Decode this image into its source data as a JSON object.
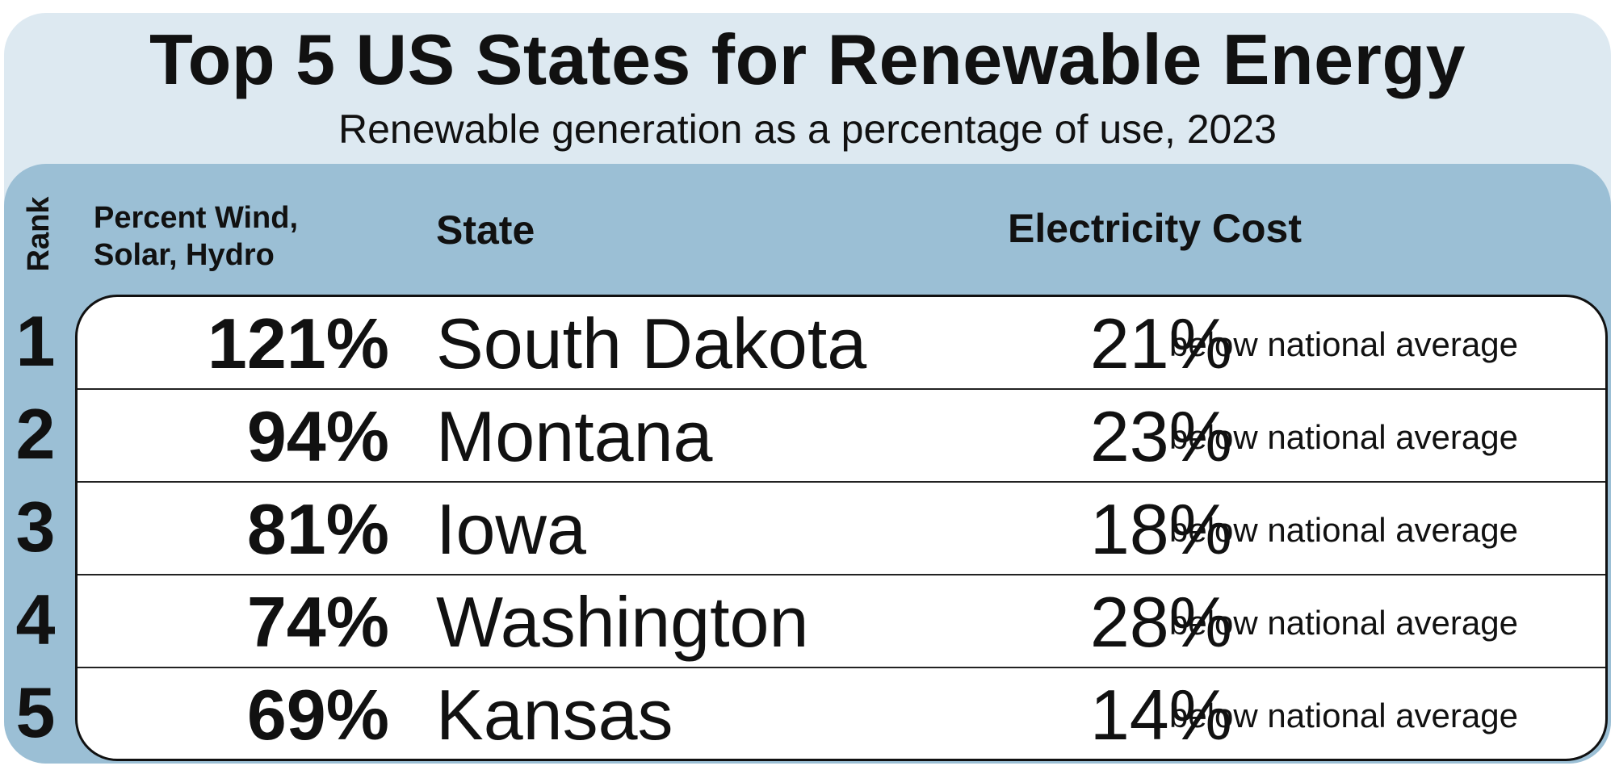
{
  "chart_data": {
    "type": "table",
    "title": "Top 5 US States for Renewable Energy",
    "subtitle": "Renewable generation as a percentage of use, 2023",
    "columns": [
      "Rank",
      "Percent Wind, Solar, Hydro",
      "State",
      "Electricity Cost"
    ],
    "rows": [
      {
        "rank": "1",
        "percent": "121%",
        "state": "South Dakota",
        "cost_pct": "21%",
        "cost_note": "below national average"
      },
      {
        "rank": "2",
        "percent": "94%",
        "state": "Montana",
        "cost_pct": "23%",
        "cost_note": "below national average"
      },
      {
        "rank": "3",
        "percent": "81%",
        "state": "Iowa",
        "cost_pct": "18%",
        "cost_note": "below national average"
      },
      {
        "rank": "4",
        "percent": "74%",
        "state": "Washington",
        "cost_pct": "28%",
        "cost_note": "below national average"
      },
      {
        "rank": "5",
        "percent": "69%",
        "state": "Kansas",
        "cost_pct": "14%",
        "cost_note": "below national average"
      }
    ],
    "values": {
      "renewable_percent": [
        121,
        94,
        81,
        74,
        69
      ],
      "cost_below_national_average_percent": [
        21,
        23,
        18,
        28,
        14
      ]
    }
  },
  "colors": {
    "outer_panel": "#dde9f1",
    "inner_panel": "#9bbfd5",
    "table_background": "#ffffff",
    "text": "#111111"
  }
}
